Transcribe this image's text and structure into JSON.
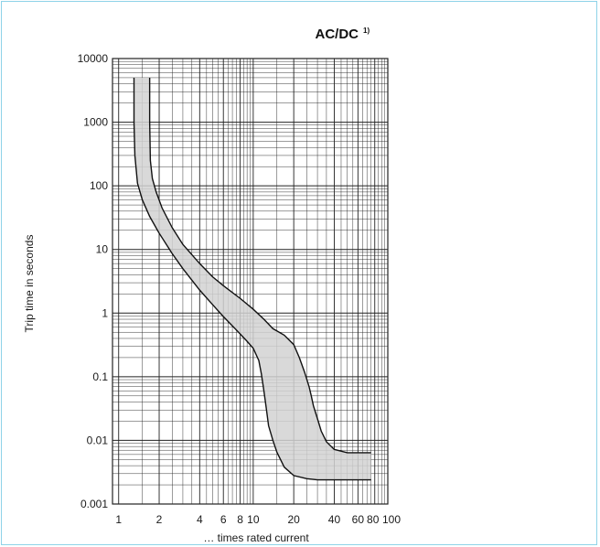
{
  "chart_data": {
    "type": "area",
    "title": "AC/DC",
    "title_note": "1)",
    "xlabel": "… times rated current",
    "ylabel": "Trip time in seconds",
    "xscale": "log",
    "yscale": "log",
    "xlim": [
      0.9,
      100
    ],
    "ylim": [
      0.001,
      10000
    ],
    "x_ticks": [
      "1",
      "2",
      "4",
      "6",
      "8",
      "10",
      "20",
      "40",
      "60",
      "80",
      "100"
    ],
    "y_ticks": [
      "0.001",
      "0.01",
      "0.1",
      "1",
      "10",
      "100",
      "1000",
      "10000"
    ],
    "grid": true,
    "colors": {
      "band": "#d2d2d2",
      "line": "#111111",
      "grid": "#222222",
      "frame": "#8ed3e8"
    },
    "series": [
      {
        "x": [
          1.3,
          1.3,
          1.32,
          1.38,
          1.5,
          1.7,
          2.0,
          2.5,
          3.0,
          4.0,
          5.0,
          6.0,
          7.0,
          8.0,
          9.0,
          10.0,
          11.0,
          11.5,
          12.0,
          12.5,
          13.0,
          14.0,
          15.0,
          17.0,
          20.0,
          25.0,
          30.0,
          40.0,
          60.0,
          75.0
        ],
        "y": [
          5000,
          1000,
          300,
          110,
          60,
          33,
          18,
          8.6,
          5.0,
          2.3,
          1.35,
          0.88,
          0.63,
          0.47,
          0.36,
          0.28,
          0.18,
          0.11,
          0.06,
          0.032,
          0.017,
          0.01,
          0.0065,
          0.0038,
          0.0028,
          0.0025,
          0.0024,
          0.0024,
          0.0024,
          0.0024
        ]
      },
      {
        "x": [
          1.7,
          1.7,
          1.72,
          1.78,
          1.9,
          2.1,
          2.5,
          3.0,
          4.0,
          5.0,
          6.0,
          8.0,
          10.0,
          12.0,
          14.0,
          17.0,
          20.0,
          22.0,
          24.0,
          26.0,
          27.0,
          28.0,
          30.0,
          32.0,
          35.0,
          40.0,
          50.0,
          75.0
        ],
        "y": [
          5000,
          1000,
          250,
          130,
          80,
          45,
          22,
          12,
          6.0,
          3.7,
          2.7,
          1.7,
          1.15,
          0.8,
          0.57,
          0.45,
          0.32,
          0.2,
          0.12,
          0.07,
          0.05,
          0.035,
          0.022,
          0.014,
          0.0095,
          0.0072,
          0.0064,
          0.0064
        ]
      }
    ]
  }
}
